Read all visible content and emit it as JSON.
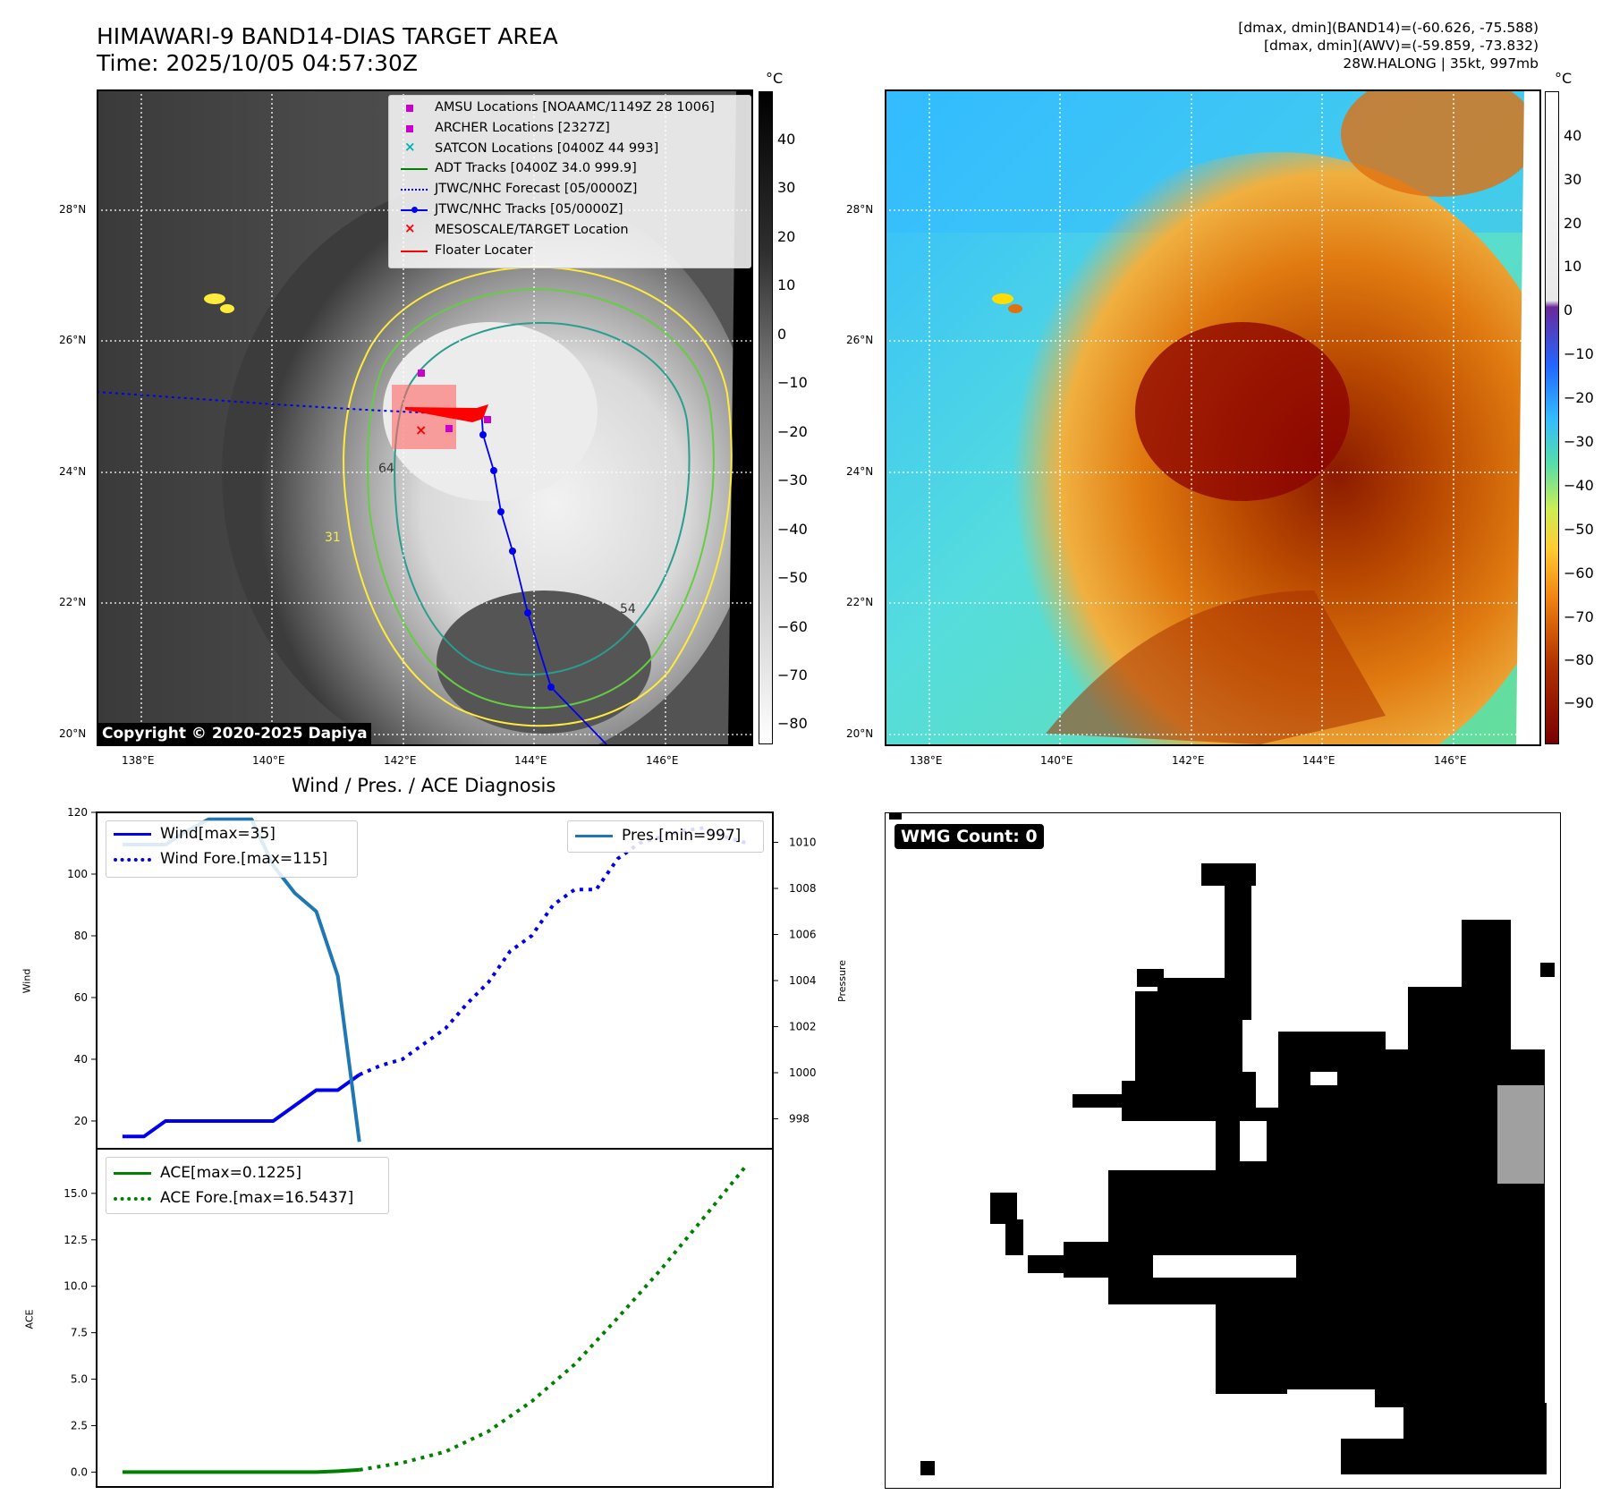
{
  "header": {
    "title_line1": "HIMAWARI-9 BAND14-DIAS TARGET AREA",
    "title_line2": "Time: 2025/10/05 04:57:30Z",
    "right_line1": "[dmax, dmin](BAND14)=(-60.626, -75.588)",
    "right_line2": "[dmax, dmin](AWV)=(-59.859, -73.832)",
    "right_line3": "28W.HALONG | 35kt, 997mb"
  },
  "map": {
    "lon_ticks": [
      "138°E",
      "140°E",
      "142°E",
      "144°E",
      "146°E"
    ],
    "lat_ticks": [
      "20°N",
      "22°N",
      "24°N",
      "26°N",
      "28°N"
    ],
    "copyright": "Copyright © 2020-2025 Dapiya",
    "colors": {
      "track": "#0000ee",
      "forecast": "#0000ee",
      "target_box": "#ff6666",
      "contour_cold": "#2a9d8f",
      "contour_warm": "#ffeb3b",
      "contour_mid": "#66cc44"
    },
    "legend": [
      {
        "label": "AMSU Locations [NOAAMC/1149Z 28 1006]",
        "icon": "square-magenta"
      },
      {
        "label": "ARCHER Locations [2327Z]",
        "icon": "square-magenta"
      },
      {
        "label": "SATCON Locations [0400Z 44 993]",
        "icon": "x-cyan"
      },
      {
        "label": "ADT Tracks [0400Z 34.0 999.9]",
        "icon": "line-green"
      },
      {
        "label": "JTWC/NHC Forecast [05/0000Z]",
        "icon": "line-dotted-blue"
      },
      {
        "label": "JTWC/NHC Tracks [05/0000Z]",
        "icon": "line-dot-blue"
      },
      {
        "label": "MESOSCALE/TARGET Location",
        "icon": "x-red"
      },
      {
        "label": "Floater Locater",
        "icon": "line-red"
      }
    ],
    "contour_labels": [
      "64",
      "54",
      "31"
    ]
  },
  "colorbar_gray": {
    "unit": "°C",
    "ticks": [
      "40",
      "30",
      "20",
      "10",
      "0",
      "−10",
      "−20",
      "−30",
      "−40",
      "−50",
      "−60",
      "−70",
      "−80"
    ]
  },
  "colorbar_color": {
    "unit": "°C",
    "ticks": [
      "40",
      "30",
      "20",
      "10",
      "0",
      "−10",
      "−20",
      "−30",
      "−40",
      "−50",
      "−60",
      "−70",
      "−80",
      "−90"
    ]
  },
  "diag": {
    "title": "Wind / Pres. / ACE Diagnosis",
    "wind_ylabel": "Wind",
    "pres_ylabel": "Pressure",
    "ace_ylabel": "ACE",
    "legend_wind": "Wind[max=35]",
    "legend_wind_fore": "Wind Fore.[max=115]",
    "legend_pres": "Pres.[min=997]",
    "legend_ace": "ACE[max=0.1225]",
    "legend_ace_fore": "ACE Fore.[max=16.5437]"
  },
  "wmg": {
    "label": "WMG Count: 0"
  },
  "chart_data": [
    {
      "type": "line",
      "title": "Wind / Pres. / ACE Diagnosis",
      "ylabel": "Wind",
      "ylim": [
        11,
        120
      ],
      "yticks": [
        20,
        40,
        60,
        80,
        100,
        120
      ],
      "series": [
        {
          "name": "Wind[max=35]",
          "style": "solid",
          "color": "#0000ee",
          "x": [
            0,
            1,
            2,
            3,
            4,
            5,
            6,
            7,
            8,
            9,
            10,
            11
          ],
          "y": [
            15,
            15,
            20,
            20,
            20,
            20,
            20,
            20,
            25,
            30,
            30,
            35
          ]
        },
        {
          "name": "Wind Fore.[max=115]",
          "style": "dotted",
          "color": "#0000ee",
          "x": [
            11,
            12,
            13,
            14,
            15,
            16,
            17,
            18,
            19,
            20,
            21,
            22,
            23,
            24,
            25,
            26,
            27,
            28,
            29
          ],
          "y": [
            35,
            38,
            40,
            45,
            50,
            58,
            65,
            75,
            80,
            90,
            95,
            95,
            105,
            110,
            112,
            114,
            115,
            112,
            110
          ]
        }
      ]
    },
    {
      "type": "line",
      "ylabel": "Pressure",
      "ylim": [
        996.7,
        1011.3
      ],
      "yticks": [
        998,
        1000,
        1002,
        1004,
        1006,
        1008,
        1010
      ],
      "series": [
        {
          "name": "Pres.[min=997]",
          "style": "solid",
          "color": "#1f77b4",
          "x": [
            0,
            1,
            2,
            3,
            4,
            5,
            6,
            7,
            8,
            9,
            10,
            11
          ],
          "y": [
            1009.9,
            1009.9,
            1009.9,
            1010.5,
            1011,
            1011,
            1011,
            1009,
            1007.8,
            1007,
            1004.2,
            997
          ]
        }
      ]
    },
    {
      "type": "line",
      "ylabel": "ACE",
      "ylim": [
        -0.8,
        17.4
      ],
      "yticks": [
        0.0,
        2.5,
        5.0,
        7.5,
        10.0,
        12.5,
        15.0
      ],
      "series": [
        {
          "name": "ACE[max=0.1225]",
          "style": "solid",
          "color": "#008000",
          "x": [
            0,
            1,
            2,
            3,
            4,
            5,
            6,
            7,
            8,
            9,
            10,
            11
          ],
          "y": [
            0,
            0,
            0,
            0,
            0,
            0,
            0,
            0,
            0,
            0,
            0.05,
            0.1225
          ]
        },
        {
          "name": "ACE Fore.[max=16.5437]",
          "style": "dotted",
          "color": "#008000",
          "x": [
            11,
            13,
            15,
            17,
            19,
            21,
            23,
            25,
            27,
            29
          ],
          "y": [
            0.12,
            0.5,
            1.1,
            2.2,
            3.8,
            5.8,
            8.3,
            10.9,
            13.7,
            16.5437
          ]
        }
      ]
    }
  ]
}
